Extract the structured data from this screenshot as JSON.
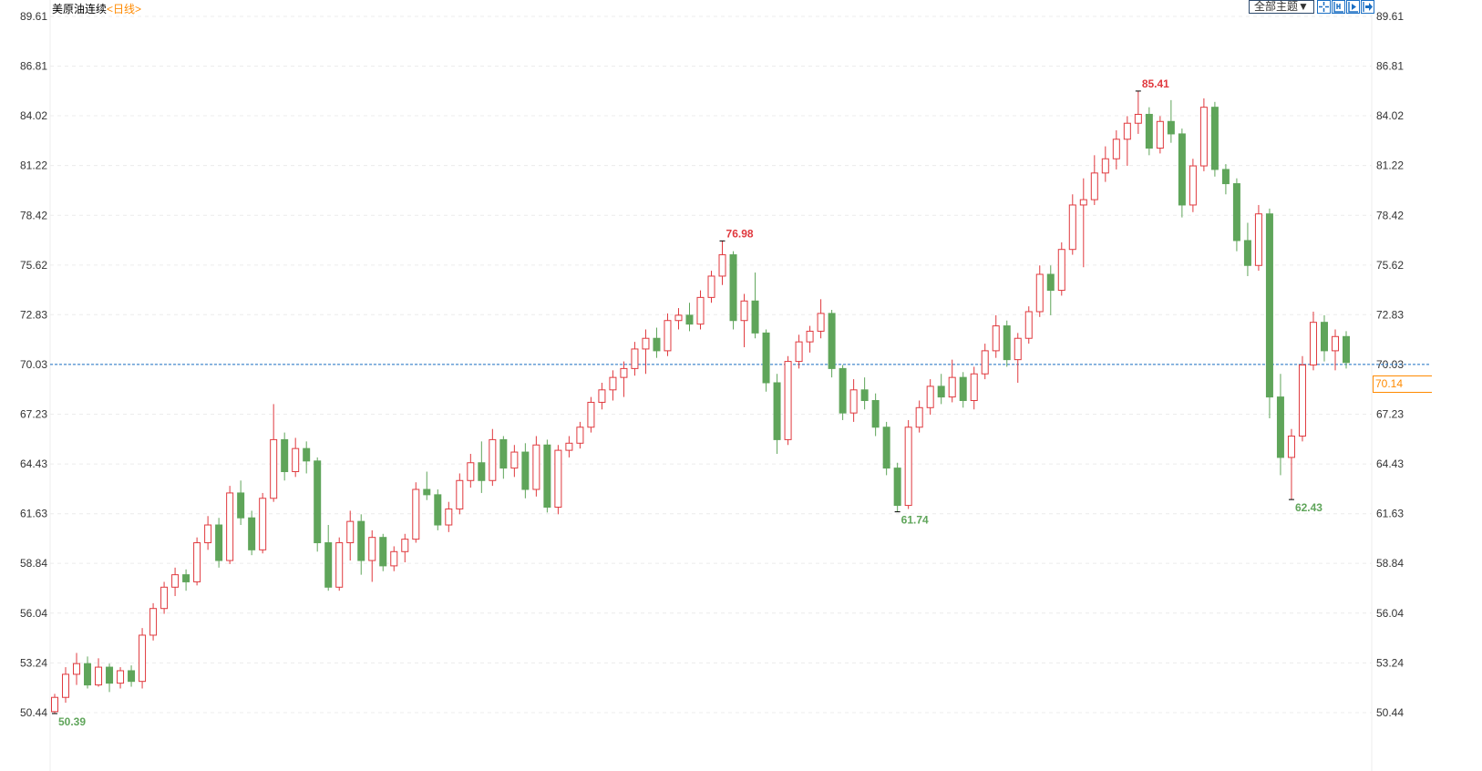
{
  "header": {
    "instrument": "美原油连续",
    "period": "<日线>",
    "theme_button": "全部主题▼",
    "tool_icons": [
      "crosshair-icon",
      "range-zoom-icon",
      "play-forward-icon",
      "jump-to-end-icon"
    ]
  },
  "colors": {
    "up": "#e0393e",
    "down": "#5fa55a",
    "last_price": "#ff8a00",
    "ref_line": "#1a6fc4",
    "axis_text": "#333333"
  },
  "chart_data": {
    "type": "candlestick",
    "ylim": [
      50.44,
      89.61
    ],
    "yticks": [
      "89.61",
      "86.81",
      "84.02",
      "81.22",
      "78.42",
      "75.62",
      "72.83",
      "70.03",
      "67.23",
      "64.43",
      "61.63",
      "58.84",
      "56.04",
      "53.24",
      "50.44"
    ],
    "grid": true,
    "reference_line": 70.03,
    "last_price": "70.14",
    "annotations": [
      {
        "index": 0,
        "label": "50.39",
        "type": "low"
      },
      {
        "index": 61,
        "label": "76.98",
        "type": "high"
      },
      {
        "index": 77,
        "label": "61.74",
        "type": "low"
      },
      {
        "index": 99,
        "label": "85.41",
        "type": "high"
      },
      {
        "index": 113,
        "label": "62.43",
        "type": "low"
      }
    ],
    "ohlc": [
      [
        50.5,
        51.5,
        50.39,
        51.3
      ],
      [
        51.3,
        53.0,
        51.0,
        52.6
      ],
      [
        52.6,
        53.8,
        52.0,
        53.2
      ],
      [
        53.2,
        53.6,
        51.8,
        52.0
      ],
      [
        52.0,
        53.5,
        51.9,
        53.0
      ],
      [
        53.0,
        53.2,
        51.6,
        52.1
      ],
      [
        52.1,
        53.0,
        51.8,
        52.8
      ],
      [
        52.8,
        53.1,
        51.9,
        52.2
      ],
      [
        52.2,
        55.2,
        51.8,
        54.8
      ],
      [
        54.8,
        56.6,
        54.5,
        56.3
      ],
      [
        56.3,
        57.8,
        56.0,
        57.5
      ],
      [
        57.5,
        58.6,
        57.0,
        58.2
      ],
      [
        58.2,
        58.5,
        57.3,
        57.8
      ],
      [
        57.8,
        60.3,
        57.6,
        60.0
      ],
      [
        60.0,
        61.5,
        59.6,
        61.0
      ],
      [
        61.0,
        61.4,
        58.6,
        59.0
      ],
      [
        59.0,
        63.2,
        58.8,
        62.8
      ],
      [
        62.8,
        63.5,
        61.0,
        61.4
      ],
      [
        61.4,
        61.8,
        59.3,
        59.6
      ],
      [
        59.6,
        62.8,
        59.4,
        62.5
      ],
      [
        62.5,
        67.8,
        62.3,
        65.8
      ],
      [
        65.8,
        66.2,
        63.5,
        64.0
      ],
      [
        64.0,
        65.9,
        63.7,
        65.3
      ],
      [
        65.3,
        65.7,
        63.9,
        64.6
      ],
      [
        64.6,
        64.8,
        59.5,
        60.0
      ],
      [
        60.0,
        61.0,
        57.3,
        57.5
      ],
      [
        57.5,
        60.3,
        57.3,
        60.0
      ],
      [
        60.0,
        61.8,
        59.0,
        61.2
      ],
      [
        61.2,
        61.6,
        58.2,
        59.0
      ],
      [
        59.0,
        60.7,
        57.8,
        60.3
      ],
      [
        60.3,
        60.5,
        58.4,
        58.7
      ],
      [
        58.7,
        59.8,
        58.4,
        59.5
      ],
      [
        59.5,
        60.5,
        58.9,
        60.2
      ],
      [
        60.2,
        63.4,
        60.0,
        63.0
      ],
      [
        63.0,
        64.0,
        62.4,
        62.7
      ],
      [
        62.7,
        63.0,
        60.7,
        61.0
      ],
      [
        61.0,
        62.3,
        60.6,
        61.9
      ],
      [
        61.9,
        63.9,
        61.6,
        63.5
      ],
      [
        63.5,
        65.0,
        63.1,
        64.5
      ],
      [
        64.5,
        65.7,
        62.8,
        63.5
      ],
      [
        63.5,
        66.4,
        63.2,
        65.8
      ],
      [
        65.8,
        66.0,
        63.6,
        64.2
      ],
      [
        64.2,
        65.5,
        63.7,
        65.1
      ],
      [
        65.1,
        65.6,
        62.5,
        63.0
      ],
      [
        63.0,
        66.0,
        62.6,
        65.5
      ],
      [
        65.5,
        65.8,
        61.7,
        62.0
      ],
      [
        62.0,
        65.5,
        61.6,
        65.2
      ],
      [
        65.2,
        66.0,
        64.8,
        65.6
      ],
      [
        65.6,
        66.8,
        65.3,
        66.5
      ],
      [
        66.5,
        68.2,
        66.2,
        67.9
      ],
      [
        67.9,
        69.0,
        67.5,
        68.6
      ],
      [
        68.6,
        69.7,
        68.0,
        69.3
      ],
      [
        69.3,
        70.2,
        68.2,
        69.8
      ],
      [
        69.8,
        71.3,
        69.4,
        70.9
      ],
      [
        70.9,
        72.0,
        69.5,
        71.5
      ],
      [
        71.5,
        72.1,
        70.4,
        70.8
      ],
      [
        70.8,
        72.9,
        70.5,
        72.5
      ],
      [
        72.5,
        73.2,
        72.0,
        72.8
      ],
      [
        72.8,
        73.5,
        71.9,
        72.3
      ],
      [
        72.3,
        74.2,
        72.0,
        73.8
      ],
      [
        73.8,
        75.3,
        73.5,
        75.0
      ],
      [
        75.0,
        76.98,
        74.5,
        76.2
      ],
      [
        76.2,
        76.4,
        72.0,
        72.5
      ],
      [
        72.5,
        74.0,
        71.0,
        73.6
      ],
      [
        73.6,
        75.2,
        71.5,
        71.8
      ],
      [
        71.8,
        72.0,
        68.5,
        69.0
      ],
      [
        69.0,
        69.5,
        65.0,
        65.8
      ],
      [
        65.8,
        70.5,
        65.5,
        70.2
      ],
      [
        70.2,
        71.7,
        69.8,
        71.3
      ],
      [
        71.3,
        72.2,
        70.7,
        71.9
      ],
      [
        71.9,
        73.7,
        71.5,
        72.9
      ],
      [
        72.9,
        73.1,
        69.3,
        69.8
      ],
      [
        69.8,
        70.0,
        66.9,
        67.3
      ],
      [
        67.3,
        69.2,
        66.8,
        68.6
      ],
      [
        68.6,
        69.3,
        67.5,
        68.0
      ],
      [
        68.0,
        68.4,
        66.0,
        66.5
      ],
      [
        66.5,
        66.8,
        63.8,
        64.2
      ],
      [
        64.2,
        64.5,
        61.74,
        62.1
      ],
      [
        62.1,
        66.9,
        61.9,
        66.5
      ],
      [
        66.5,
        68.0,
        66.2,
        67.6
      ],
      [
        67.6,
        69.2,
        67.2,
        68.8
      ],
      [
        68.8,
        69.5,
        67.8,
        68.2
      ],
      [
        68.2,
        70.3,
        67.9,
        69.3
      ],
      [
        69.3,
        69.6,
        67.6,
        68.0
      ],
      [
        68.0,
        69.9,
        67.5,
        69.5
      ],
      [
        69.5,
        71.2,
        69.2,
        70.8
      ],
      [
        70.8,
        72.8,
        70.4,
        72.2
      ],
      [
        72.2,
        72.5,
        69.9,
        70.3
      ],
      [
        70.3,
        71.8,
        69.0,
        71.5
      ],
      [
        71.5,
        73.3,
        71.2,
        73.0
      ],
      [
        73.0,
        75.6,
        72.7,
        75.1
      ],
      [
        75.1,
        75.6,
        72.8,
        74.2
      ],
      [
        74.2,
        76.9,
        73.9,
        76.5
      ],
      [
        76.5,
        79.6,
        76.2,
        79.0
      ],
      [
        79.0,
        80.5,
        75.5,
        79.3
      ],
      [
        79.3,
        81.8,
        79.0,
        80.8
      ],
      [
        80.8,
        82.3,
        80.3,
        81.6
      ],
      [
        81.6,
        83.2,
        81.0,
        82.7
      ],
      [
        82.7,
        84.0,
        81.2,
        83.6
      ],
      [
        83.6,
        85.41,
        83.0,
        84.1
      ],
      [
        84.1,
        84.5,
        81.8,
        82.2
      ],
      [
        82.2,
        84.0,
        81.9,
        83.7
      ],
      [
        83.7,
        84.9,
        82.5,
        83.0
      ],
      [
        83.0,
        83.3,
        78.3,
        79.0
      ],
      [
        79.0,
        81.6,
        78.6,
        81.2
      ],
      [
        81.2,
        85.0,
        80.9,
        84.5
      ],
      [
        84.5,
        84.8,
        80.6,
        81.0
      ],
      [
        81.0,
        81.3,
        79.6,
        80.2
      ],
      [
        80.2,
        80.5,
        76.4,
        77.0
      ],
      [
        77.0,
        78.0,
        75.0,
        75.6
      ],
      [
        75.6,
        79.0,
        75.3,
        78.5
      ],
      [
        78.5,
        78.8,
        67.0,
        68.2
      ],
      [
        68.2,
        69.5,
        63.8,
        64.8
      ],
      [
        64.8,
        66.4,
        62.43,
        66.0
      ],
      [
        66.0,
        70.5,
        65.7,
        70.0
      ],
      [
        70.0,
        73.0,
        69.7,
        72.4
      ],
      [
        72.4,
        72.8,
        70.2,
        70.8
      ],
      [
        70.8,
        72.0,
        69.7,
        71.6
      ],
      [
        71.6,
        71.9,
        69.8,
        70.14
      ]
    ]
  }
}
